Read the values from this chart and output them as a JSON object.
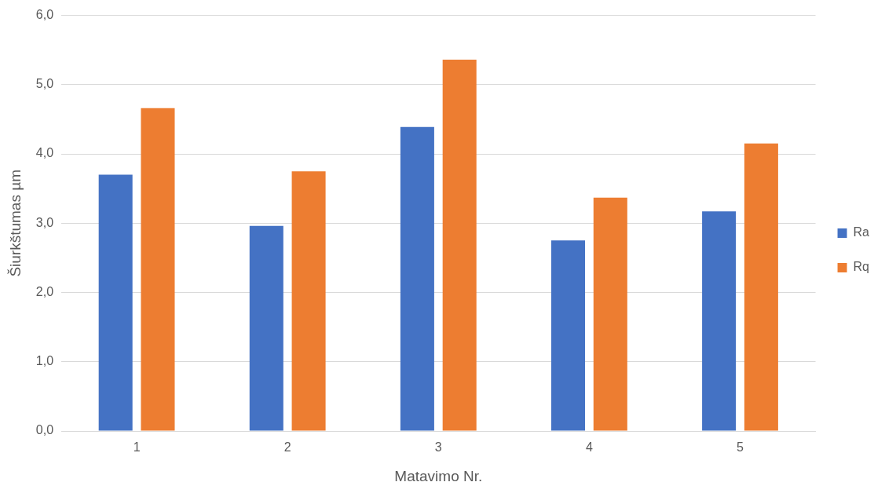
{
  "chart_data": {
    "type": "bar",
    "xlabel": "Matavimo Nr.",
    "ylabel": "Šiurkštumas µm",
    "categories": [
      "1",
      "2",
      "3",
      "4",
      "5"
    ],
    "series": [
      {
        "name": "Ra",
        "color": "#4472c4",
        "values": [
          3.7,
          2.96,
          4.39,
          2.75,
          3.17
        ]
      },
      {
        "name": "Rq",
        "color": "#ed7d31",
        "values": [
          4.66,
          3.75,
          5.36,
          3.37,
          4.15
        ]
      }
    ],
    "ylim": [
      0,
      6
    ],
    "yticks": [
      {
        "value": 0,
        "label": "0,0"
      },
      {
        "value": 1,
        "label": "1,0"
      },
      {
        "value": 2,
        "label": "2,0"
      },
      {
        "value": 3,
        "label": "3,0"
      },
      {
        "value": 4,
        "label": "4,0"
      },
      {
        "value": 5,
        "label": "5,0"
      },
      {
        "value": 6,
        "label": "6,0"
      }
    ],
    "grid": "y",
    "legend": "right"
  }
}
